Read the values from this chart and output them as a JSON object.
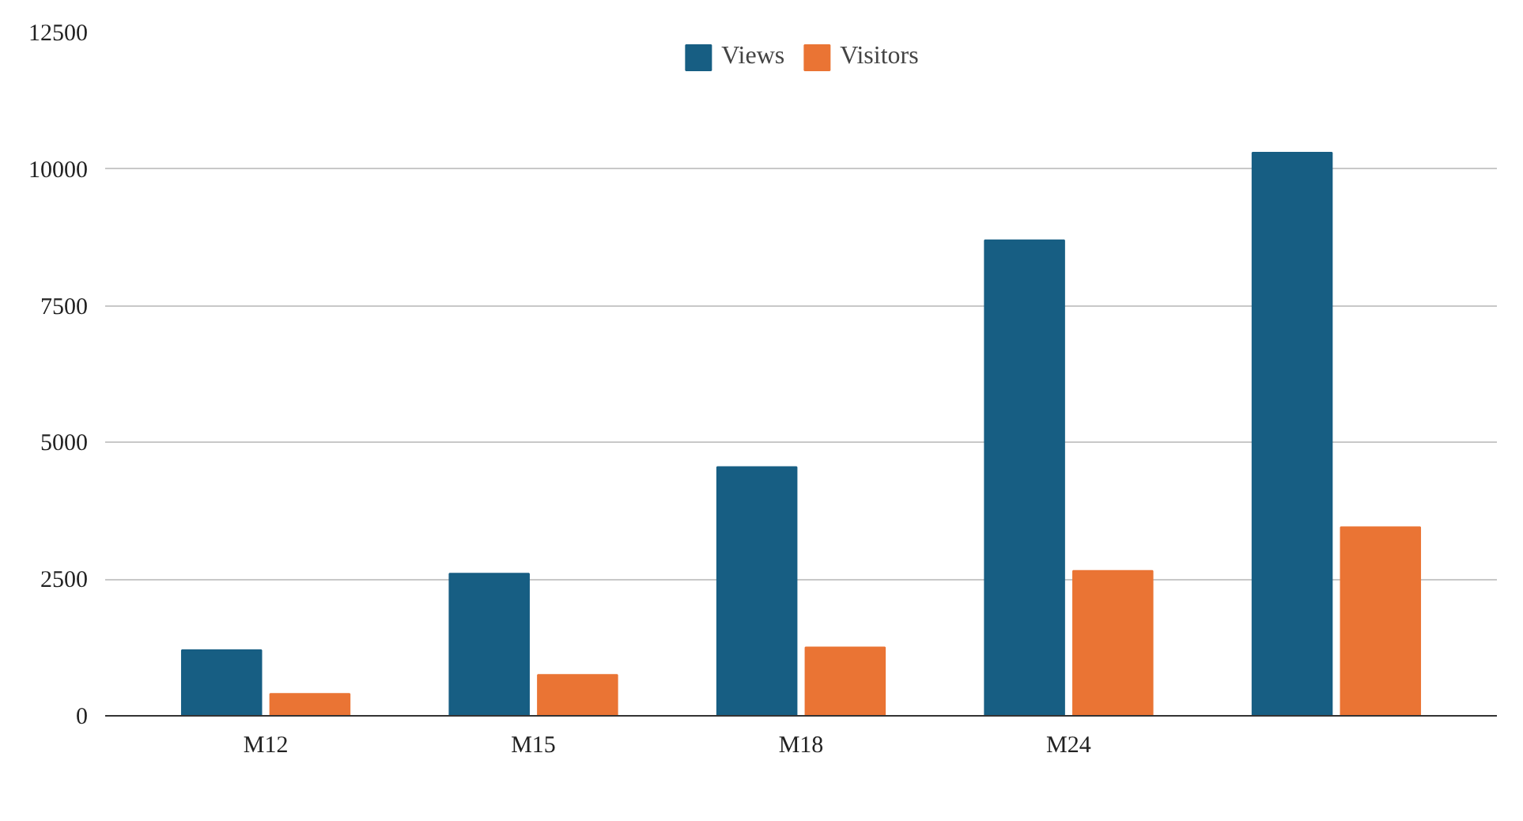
{
  "chart_data": {
    "type": "bar",
    "categories": [
      "M12",
      "M15",
      "M18",
      "M24",
      null
    ],
    "series": [
      {
        "name": "Views",
        "color": "#175e83",
        "values": [
          1200,
          2600,
          4550,
          8700,
          10300
        ]
      },
      {
        "name": "Visitors",
        "color": "#ea7434",
        "values": [
          400,
          750,
          1250,
          2650,
          3450
        ]
      }
    ],
    "ylim": [
      0,
      12500
    ],
    "yticks": [
      0,
      2500,
      5000,
      7500,
      10000,
      12500
    ],
    "grid": "y",
    "legend": "top"
  }
}
